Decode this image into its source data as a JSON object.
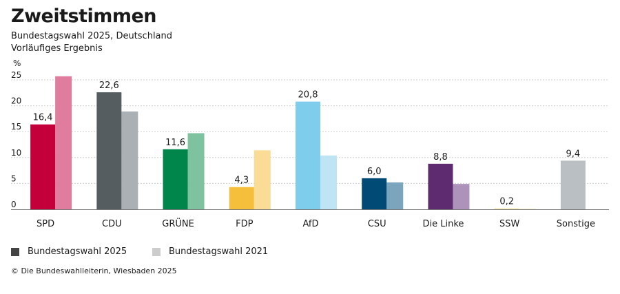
{
  "chart_data": {
    "type": "bar",
    "title": "Zweitstimmen",
    "subtitle": "Bundestagswahl 2025, Deutschland",
    "subtitle2": "Vorläufiges Ergebnis",
    "ylabel": "%",
    "ylim": [
      0,
      25
    ],
    "yticks": [
      0,
      5,
      10,
      15,
      20,
      25
    ],
    "grid": true,
    "legend_position": "bottom-left",
    "categories": [
      "SPD",
      "CDU",
      "GRÜNE",
      "FDP",
      "AfD",
      "CSU",
      "Die Linke",
      "SSW",
      "Sonstige"
    ],
    "series": [
      {
        "name": "Bundestagswahl 2025",
        "values": [
          16.4,
          22.6,
          11.6,
          4.3,
          20.8,
          6.0,
          8.8,
          0.2,
          9.4
        ],
        "labels": [
          "16,4",
          "22,6",
          "11,6",
          "4,3",
          "20,8",
          "6,0",
          "8,8",
          "0,2",
          "9,4"
        ],
        "colors": [
          "#c4003a",
          "#555d61",
          "#00864b",
          "#f5bf3c",
          "#7fcdec",
          "#004a75",
          "#5f2b70",
          "#f5e9b0",
          "#b9bfc3"
        ]
      },
      {
        "name": "Bundestagswahl 2021",
        "values": [
          25.7,
          18.9,
          14.7,
          11.4,
          10.4,
          5.2,
          4.9,
          0.1,
          null
        ],
        "colors": [
          "#e07d9e",
          "#aab0b3",
          "#7fc2a0",
          "#fbdc97",
          "#bfe5f5",
          "#7ba4bd",
          "#ad92ba",
          "#f7f0d2",
          null
        ]
      }
    ],
    "legend_colors": [
      "#444444",
      "#cccccc"
    ]
  },
  "source": "© Die Bundeswahlleiterin, Wiesbaden 2025"
}
